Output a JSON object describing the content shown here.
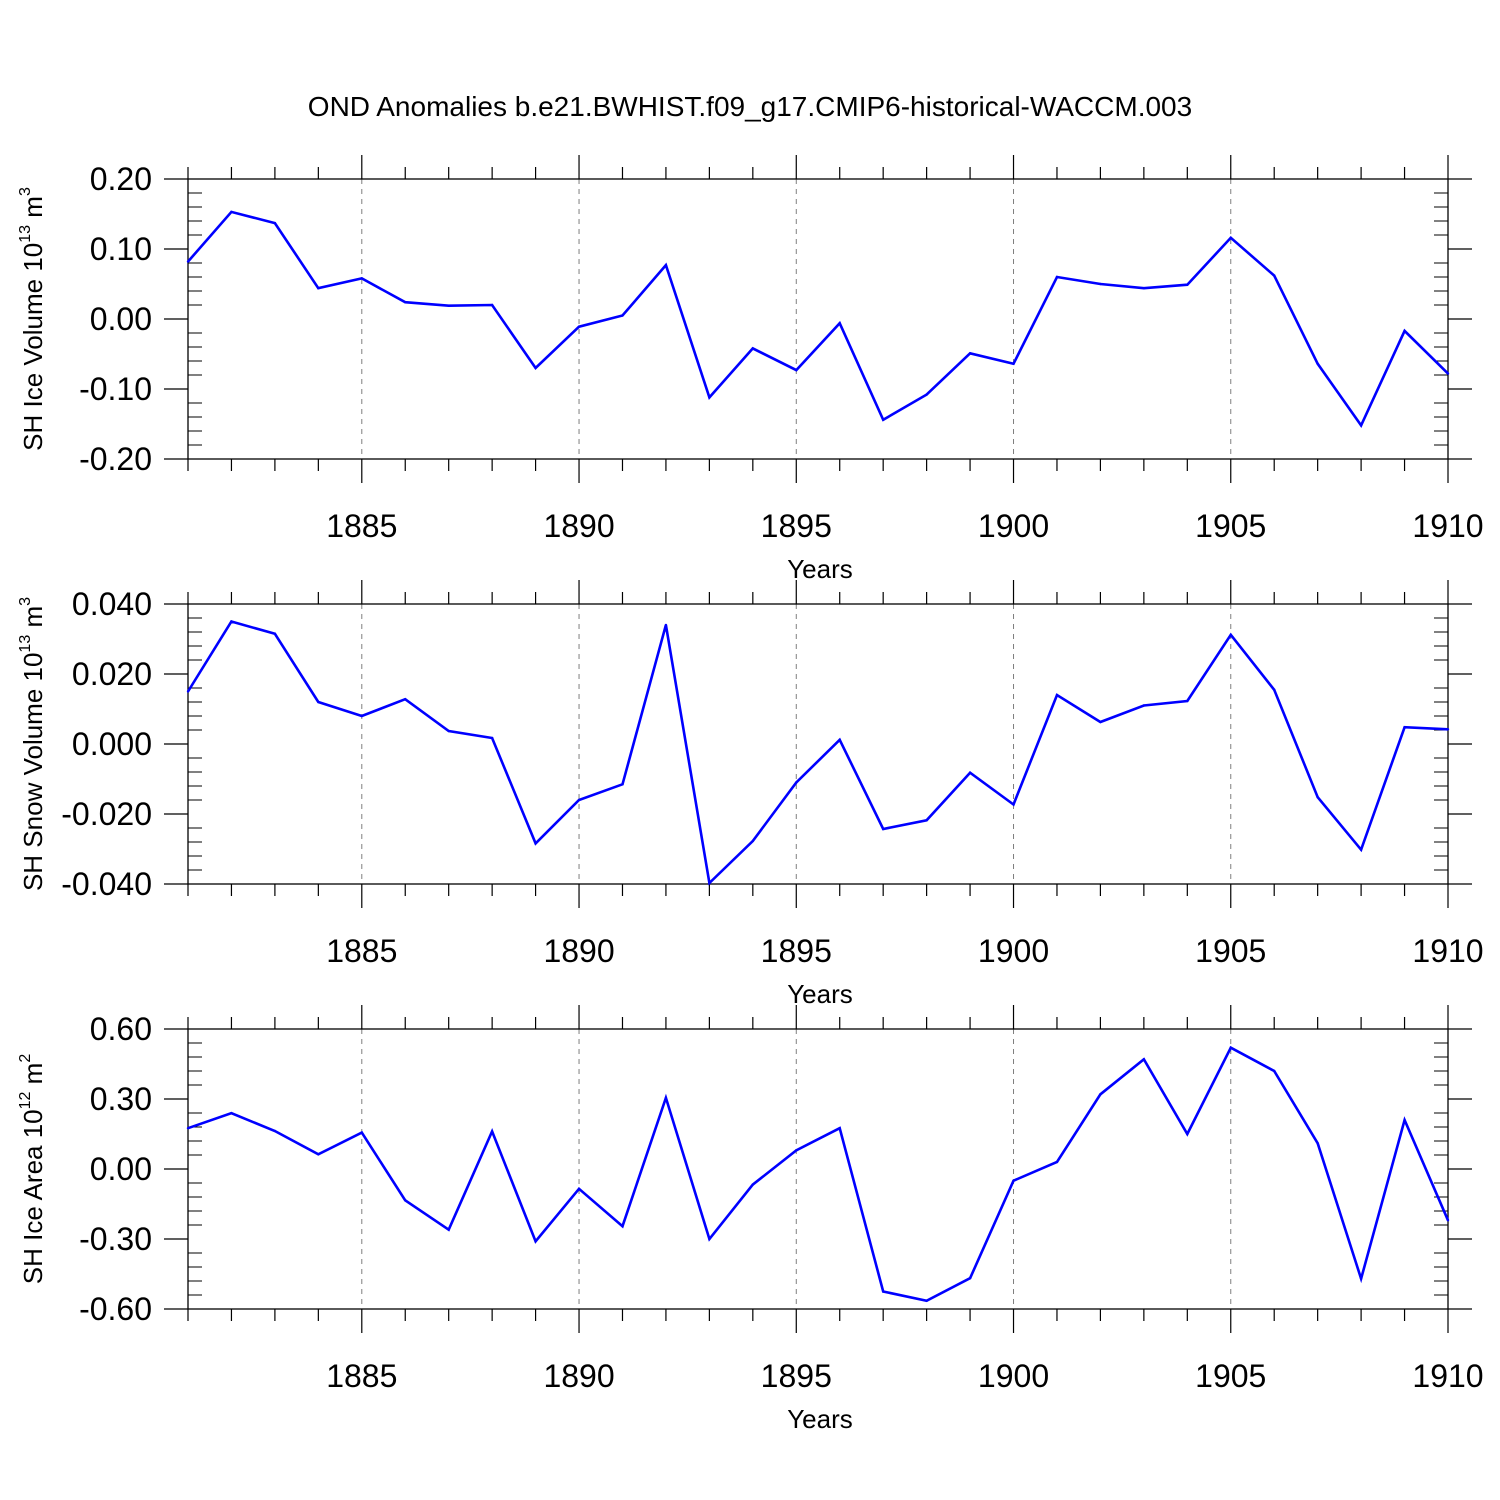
{
  "figure": {
    "title": "OND Anomalies b.e21.BWHIST.f09_g17.CMIP6-historical-WACCM.003",
    "line_color": "#0000ff",
    "grid_color": "#7f7f7f",
    "frame_color": "#000000"
  },
  "chart_data": [
    {
      "type": "line",
      "name": "ice-volume",
      "ylabel": {
        "prefix": "SH Ice Volume 10",
        "exponent": "13",
        "unit": " m",
        "unit_exponent": "3"
      },
      "xlabel": "Years",
      "xlim": [
        1881,
        1910
      ],
      "ylim": [
        -0.2,
        0.2
      ],
      "yticks": [
        -0.2,
        -0.1,
        0.0,
        0.1,
        0.2
      ],
      "ytick_labels": [
        "-0.20",
        "-0.10",
        "0.00",
        "0.10",
        "0.20"
      ],
      "xticks": [
        1885,
        1890,
        1895,
        1900,
        1905,
        1910
      ],
      "xtick_labels": [
        "1885",
        "1890",
        "1895",
        "1900",
        "1905",
        "1910"
      ],
      "grid": "vertical dashed at major x ticks",
      "x": [
        1881,
        1882,
        1883,
        1884,
        1885,
        1886,
        1887,
        1888,
        1889,
        1890,
        1891,
        1892,
        1893,
        1894,
        1895,
        1896,
        1897,
        1898,
        1899,
        1900,
        1901,
        1902,
        1903,
        1904,
        1905,
        1906,
        1907,
        1908,
        1909,
        1910
      ],
      "values": [
        0.082,
        0.153,
        0.137,
        0.044,
        0.058,
        0.024,
        0.019,
        0.02,
        -0.07,
        -0.011,
        0.005,
        0.077,
        -0.112,
        -0.042,
        -0.073,
        -0.006,
        -0.144,
        -0.108,
        -0.049,
        -0.064,
        0.06,
        0.05,
        0.044,
        0.049,
        0.116,
        0.062,
        -0.064,
        -0.152,
        -0.017,
        -0.078
      ]
    },
    {
      "type": "line",
      "name": "snow-volume",
      "ylabel": {
        "prefix": "SH Snow Volume 10",
        "exponent": "13",
        "unit": " m",
        "unit_exponent": "3"
      },
      "xlabel": "Years",
      "xlim": [
        1881,
        1910
      ],
      "ylim": [
        -0.04,
        0.04
      ],
      "yticks": [
        -0.04,
        -0.02,
        0.0,
        0.02,
        0.04
      ],
      "ytick_labels": [
        "-0.040",
        "-0.020",
        "0.000",
        "0.020",
        "0.040"
      ],
      "xticks": [
        1885,
        1890,
        1895,
        1900,
        1905,
        1910
      ],
      "xtick_labels": [
        "1885",
        "1890",
        "1895",
        "1900",
        "1905",
        "1910"
      ],
      "grid": "vertical dashed at major x ticks",
      "x": [
        1881,
        1882,
        1883,
        1884,
        1885,
        1886,
        1887,
        1888,
        1889,
        1890,
        1891,
        1892,
        1893,
        1894,
        1895,
        1896,
        1897,
        1898,
        1899,
        1900,
        1901,
        1902,
        1903,
        1904,
        1905,
        1906,
        1907,
        1908,
        1909,
        1910
      ],
      "values": [
        0.015,
        0.035,
        0.0315,
        0.012,
        0.008,
        0.0128,
        0.0037,
        0.0017,
        -0.0284,
        -0.016,
        -0.0115,
        0.034,
        -0.0397,
        -0.0277,
        -0.011,
        0.0012,
        -0.0243,
        -0.0218,
        -0.0082,
        -0.0173,
        0.014,
        0.0063,
        0.011,
        0.0123,
        0.0312,
        0.0155,
        -0.0152,
        -0.0302,
        0.0048,
        0.0042
      ]
    },
    {
      "type": "line",
      "name": "ice-area",
      "ylabel": {
        "prefix": "SH Ice Area 10",
        "exponent": "12",
        "unit": " m",
        "unit_exponent": "2"
      },
      "xlabel": "Years",
      "xlim": [
        1881,
        1910
      ],
      "ylim": [
        -0.6,
        0.6
      ],
      "yticks": [
        -0.6,
        -0.3,
        0.0,
        0.3,
        0.6
      ],
      "ytick_labels": [
        "-0.60",
        "-0.30",
        "0.00",
        "0.30",
        "0.60"
      ],
      "xticks": [
        1885,
        1890,
        1895,
        1900,
        1905,
        1910
      ],
      "xtick_labels": [
        "1885",
        "1890",
        "1895",
        "1900",
        "1905",
        "1910"
      ],
      "grid": "vertical dashed at major x ticks",
      "x": [
        1881,
        1882,
        1883,
        1884,
        1885,
        1886,
        1887,
        1888,
        1889,
        1890,
        1891,
        1892,
        1893,
        1894,
        1895,
        1896,
        1897,
        1898,
        1899,
        1900,
        1901,
        1902,
        1903,
        1904,
        1905,
        1906,
        1907,
        1908,
        1909,
        1910
      ],
      "values": [
        0.175,
        0.239,
        0.163,
        0.063,
        0.156,
        -0.134,
        -0.26,
        0.161,
        -0.31,
        -0.085,
        -0.245,
        0.305,
        -0.3,
        -0.067,
        0.08,
        0.175,
        -0.525,
        -0.565,
        -0.468,
        -0.05,
        0.03,
        0.32,
        0.47,
        0.15,
        0.52,
        0.42,
        0.11,
        -0.47,
        0.21,
        -0.22
      ]
    }
  ]
}
